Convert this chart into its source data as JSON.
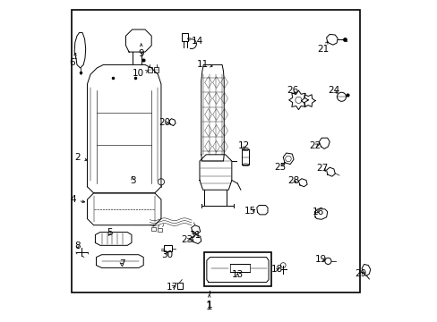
{
  "bg_color": "#ffffff",
  "border_color": "#000000",
  "text_color": "#000000",
  "fig_width": 4.89,
  "fig_height": 3.6,
  "dpi": 100,
  "border": [
    0.04,
    0.09,
    0.9,
    0.88
  ]
}
